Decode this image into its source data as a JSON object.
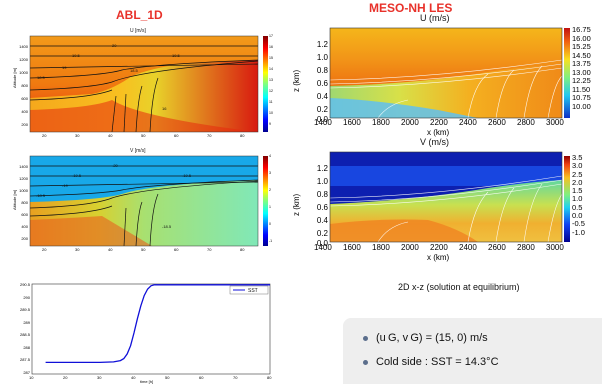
{
  "headers": {
    "left": "ABL_1D",
    "right": "MESO-NH LES"
  },
  "caption": "2D x-z (solution at equilibrium)",
  "bullets": [
    {
      "text": "(u G, v G) = (15, 0) m/s"
    },
    {
      "text": "Cold side : SST = 14.3°C"
    }
  ],
  "chart_data": [
    {
      "type": "heatmap",
      "title": "U [m/s]",
      "ylabel": "Altitude [m]",
      "xlabel": "",
      "xticks": [
        "20",
        "30",
        "40",
        "50",
        "60",
        "70",
        "80"
      ],
      "yticks": [
        "200",
        "400",
        "600",
        "800",
        "1000",
        "1200",
        "1400"
      ],
      "colorbar_ticks": [
        "17",
        "16",
        "15",
        "14",
        "13",
        "12",
        "11",
        "10",
        "9"
      ],
      "contour_labels": [
        "20",
        "19.5",
        "19",
        "18.5",
        "18",
        "17.5",
        "16",
        "15.5"
      ]
    },
    {
      "type": "heatmap",
      "title": "V [m/s]",
      "ylabel": "Altitude [m]",
      "xlabel": "",
      "xticks": [
        "20",
        "30",
        "40",
        "50",
        "60",
        "70",
        "80"
      ],
      "yticks": [
        "200",
        "400",
        "600",
        "800",
        "1000",
        "1200",
        "1400"
      ],
      "colorbar_ticks": [
        "4",
        "3",
        "2",
        "1",
        "0",
        "-1"
      ],
      "contour_labels": [
        "-20",
        "-19.5",
        "-19",
        "-18.5",
        "-18"
      ]
    },
    {
      "type": "line",
      "title": "",
      "xlabel": "time [h]",
      "ylabel": "",
      "xticks": [
        "10",
        "20",
        "30",
        "40",
        "50",
        "60",
        "70",
        "80"
      ],
      "yticks": [
        "290.5",
        "290",
        "289.5",
        "289",
        "288.5",
        "288",
        "287.5",
        "287"
      ],
      "xlim": [
        10,
        80
      ],
      "ylim": [
        287,
        290.5
      ],
      "series": [
        {
          "name": "SST",
          "x": [
            14,
            30,
            34,
            36,
            37,
            38,
            39,
            40,
            41,
            42,
            43,
            44,
            45,
            46,
            50,
            60,
            70,
            80
          ],
          "y": [
            287.45,
            287.45,
            287.47,
            287.52,
            287.6,
            287.78,
            288.1,
            288.6,
            289.15,
            289.65,
            290.05,
            290.3,
            290.43,
            290.47,
            290.47,
            290.47,
            290.47,
            290.47
          ]
        }
      ]
    },
    {
      "type": "heatmap",
      "title": "U (m/s)",
      "xlabel": "x (km)",
      "ylabel": "z (km)",
      "xticks": [
        "1400",
        "1600",
        "1800",
        "2000",
        "2200",
        "2400",
        "2600",
        "2800",
        "3000"
      ],
      "yticks": [
        "0.0",
        "0.2",
        "0.4",
        "0.6",
        "0.8",
        "1.0",
        "1.2"
      ],
      "colorbar_ticks": [
        "16.75",
        "16.00",
        "15.25",
        "14.50",
        "13.75",
        "13.00",
        "12.25",
        "11.50",
        "10.75",
        "10.00"
      ]
    },
    {
      "type": "heatmap",
      "title": "V (m/s)",
      "xlabel": "x (km)",
      "ylabel": "z (km)",
      "xticks": [
        "1400",
        "1600",
        "1800",
        "2000",
        "2200",
        "2400",
        "2600",
        "2800",
        "3000"
      ],
      "yticks": [
        "0.0",
        "0.2",
        "0.4",
        "0.6",
        "0.8",
        "1.0",
        "1.2"
      ],
      "colorbar_ticks": [
        "3.5",
        "3.0",
        "2.5",
        "2.0",
        "1.5",
        "1.0",
        "0.5",
        "0.0",
        "-0.5",
        "-1.0"
      ]
    }
  ],
  "colors": {
    "header": "#e8312a",
    "sst_line": "#1010d8"
  }
}
